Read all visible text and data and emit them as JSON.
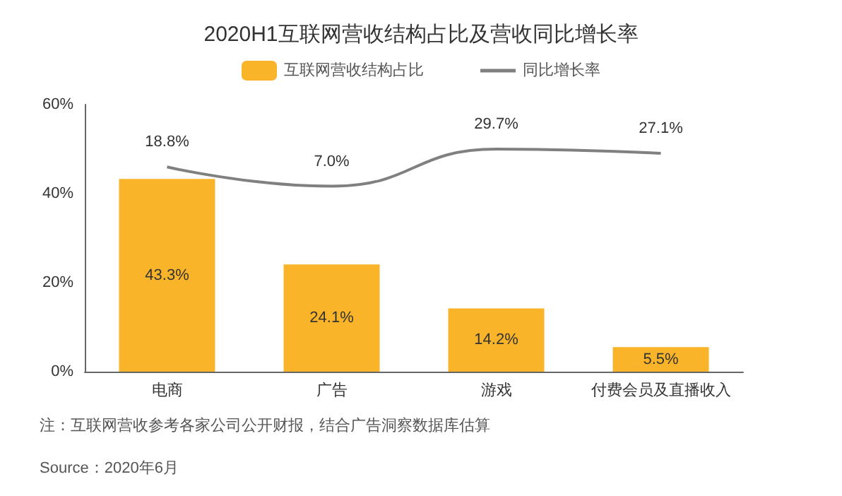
{
  "chart_data": {
    "type": "bar",
    "title": "2020H1互联网营收结构占比及营收同比增长率",
    "categories": [
      "电商",
      "广告",
      "游戏",
      "付费会员及直播收入"
    ],
    "series": [
      {
        "name": "互联网营收结构占比",
        "color": "#f9b42a",
        "values": [
          43.3,
          24.1,
          14.2,
          5.5
        ],
        "value_labels": [
          "43.3%",
          "24.1%",
          "14.2%",
          "5.5%"
        ]
      },
      {
        "name": "同比增长率",
        "type": "line",
        "axis": "y2",
        "color": "#808080",
        "values": [
          18.8,
          7.0,
          29.7,
          27.1
        ],
        "value_labels": [
          "18.8%",
          "7.0%",
          "29.7%",
          "27.1%"
        ]
      }
    ],
    "ylim": [
      0,
      60
    ],
    "yticks": [
      {
        "value": 0,
        "label": "0%"
      },
      {
        "value": 20,
        "label": "20%"
      },
      {
        "value": 40,
        "label": "40%"
      },
      {
        "value": 60,
        "label": "60%"
      }
    ],
    "grid": false,
    "legend": "top",
    "marker": "none",
    "annotations": [
      "注：互联网营收参考各家公司公开财报，结合广告洞察数据库估算",
      "Source：2020年6月"
    ]
  }
}
